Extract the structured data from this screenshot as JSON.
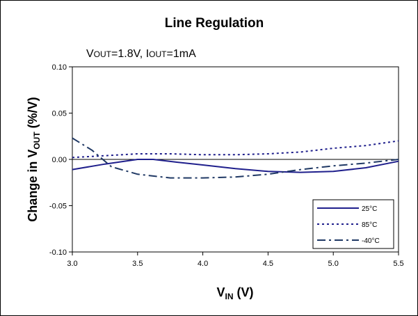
{
  "chart_data": {
    "type": "line",
    "title": "Line Regulation",
    "subtitle": {
      "v": "V",
      "v_sub": "OUT",
      "v_rest": "=1.8V, ",
      "i": "I",
      "i_sub": "OUT",
      "i_rest": "=1mA"
    },
    "xlabel": {
      "main": "V",
      "sub": "IN",
      "rest": " (V)"
    },
    "ylabel": {
      "main": "Change in V",
      "sub": "OUT",
      "rest": " (%/V)"
    },
    "xlim": [
      3.0,
      5.5
    ],
    "ylim": [
      -0.1,
      0.1
    ],
    "xticks": [
      "3.0",
      "3.5",
      "4.0",
      "4.5",
      "5.0",
      "5.5"
    ],
    "xtick_values": [
      3.0,
      3.5,
      4.0,
      4.5,
      5.0,
      5.5
    ],
    "yticks": [
      "0.10",
      "0.05",
      "0.00",
      "-0.05",
      "-0.10"
    ],
    "ytick_values": [
      0.1,
      0.05,
      0.0,
      -0.05,
      -0.1
    ],
    "grid": false,
    "legend_position": "bottom-right",
    "series": [
      {
        "name": "25°C",
        "color": "#1f1f8c",
        "style": "solid",
        "x": [
          3.0,
          3.25,
          3.5,
          3.62,
          3.8,
          4.0,
          4.25,
          4.5,
          4.75,
          5.0,
          5.25,
          5.5
        ],
        "y": [
          -0.011,
          -0.005,
          0.0,
          0.0,
          -0.003,
          -0.006,
          -0.01,
          -0.013,
          -0.014,
          -0.013,
          -0.009,
          -0.002
        ]
      },
      {
        "name": "85°C",
        "color": "#1f1f8c",
        "style": "dotted",
        "x": [
          3.0,
          3.25,
          3.5,
          3.75,
          4.0,
          4.25,
          4.5,
          4.75,
          5.0,
          5.25,
          5.5
        ],
        "y": [
          0.002,
          0.004,
          0.006,
          0.006,
          0.005,
          0.005,
          0.006,
          0.008,
          0.012,
          0.015,
          0.02
        ]
      },
      {
        "name": "-40°C",
        "color": "#1f3864",
        "style": "dashdot",
        "x": [
          3.0,
          3.15,
          3.3,
          3.5,
          3.75,
          4.0,
          4.25,
          4.5,
          4.75,
          5.0,
          5.25,
          5.5
        ],
        "y": [
          0.023,
          0.01,
          -0.008,
          -0.016,
          -0.02,
          -0.02,
          -0.019,
          -0.016,
          -0.011,
          -0.007,
          -0.004,
          0.0
        ]
      }
    ]
  }
}
